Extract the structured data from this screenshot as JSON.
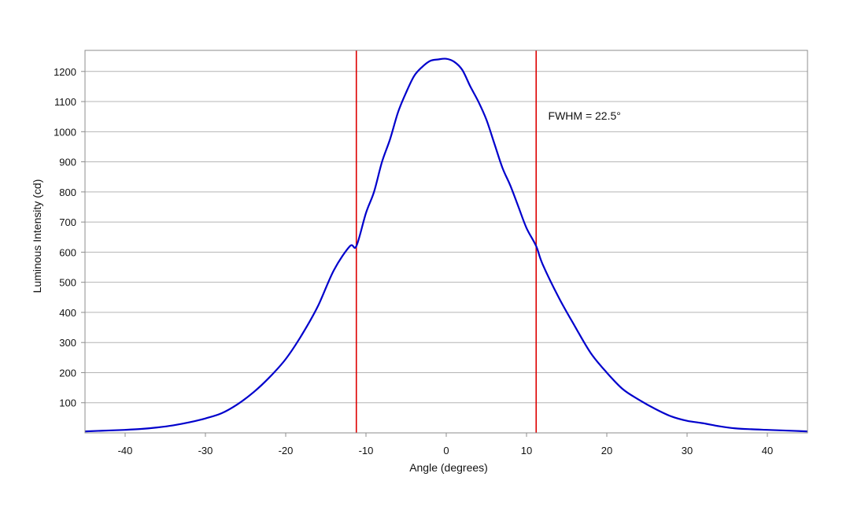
{
  "chart_data": {
    "type": "line",
    "title": "",
    "xlabel": "Angle (degrees)",
    "ylabel": "Luminous Intensity (cd)",
    "xlim": [
      -45,
      45
    ],
    "ylim": [
      0,
      1270
    ],
    "x_ticks": [
      -40,
      -30,
      -20,
      -10,
      0,
      10,
      20,
      30,
      40
    ],
    "x_tick_labels": [
      "-40",
      "-30",
      "-20",
      "-10",
      "0",
      "10",
      "20",
      "30",
      "40"
    ],
    "y_ticks": [
      100,
      200,
      300,
      400,
      500,
      600,
      700,
      800,
      900,
      1000,
      1100,
      1200
    ],
    "y_tick_labels": [
      "100",
      "200",
      "300",
      "400",
      "500",
      "600",
      "700",
      "800",
      "900",
      "1000",
      "1100",
      "1200"
    ],
    "grid": "horizontal",
    "series": [
      {
        "color": "#0000cc",
        "x": [
          -45,
          -42,
          -40,
          -38,
          -36,
          -34,
          -32,
          -30,
          -28,
          -26,
          -24,
          -22,
          -20,
          -18,
          -16,
          -14,
          -12,
          -11.2,
          -10,
          -9,
          -8,
          -7,
          -6,
          -5,
          -4,
          -3,
          -2,
          -1,
          0,
          1,
          2,
          3,
          4,
          5,
          6,
          7,
          8,
          9,
          10,
          11.2,
          12,
          14,
          16,
          18,
          20,
          22,
          24,
          26,
          28,
          30,
          32,
          34,
          36,
          38,
          40,
          42,
          45
        ],
        "y": [
          5,
          8,
          10,
          13,
          18,
          25,
          35,
          48,
          65,
          95,
          135,
          185,
          245,
          325,
          420,
          540,
          620,
          620,
          730,
          800,
          900,
          975,
          1065,
          1130,
          1185,
          1215,
          1235,
          1240,
          1242,
          1232,
          1205,
          1150,
          1100,
          1040,
          960,
          880,
          820,
          750,
          680,
          620,
          560,
          450,
          355,
          265,
          200,
          145,
          110,
          80,
          55,
          40,
          32,
          22,
          15,
          12,
          10,
          8,
          5
        ]
      }
    ],
    "reference_lines": [
      {
        "axis": "x",
        "value": -11.2,
        "color": "#dd0000"
      },
      {
        "axis": "x",
        "value": 11.2,
        "color": "#dd0000"
      }
    ],
    "annotations": [
      {
        "text": "FWHM = 22.5°",
        "x": 12.7,
        "y": 1040
      }
    ]
  }
}
